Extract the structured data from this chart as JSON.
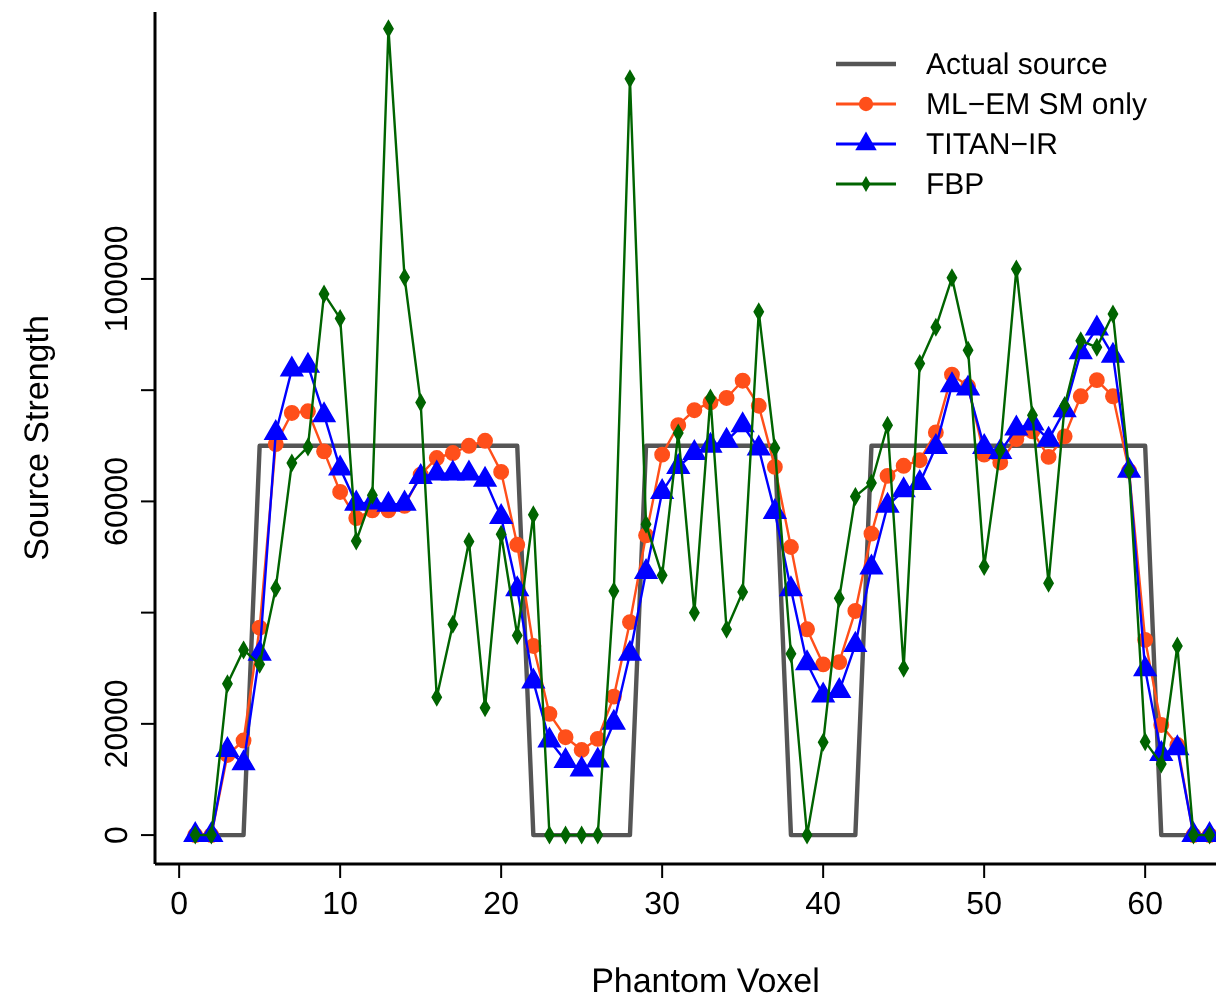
{
  "chart_data": {
    "type": "line",
    "xlabel": "Phantom Voxel",
    "ylabel": "Source Strength",
    "x": [
      1,
      2,
      3,
      4,
      5,
      6,
      7,
      8,
      9,
      10,
      11,
      12,
      13,
      14,
      15,
      16,
      17,
      18,
      19,
      20,
      21,
      22,
      23,
      24,
      25,
      26,
      27,
      28,
      29,
      30,
      31,
      32,
      33,
      34,
      35,
      36,
      37,
      38,
      39,
      40,
      41,
      42,
      43,
      44,
      45,
      46,
      47,
      48,
      49,
      50,
      51,
      52,
      53,
      54,
      55,
      56,
      57,
      58,
      59,
      60,
      61,
      62,
      63,
      64
    ],
    "xlim": [
      -1.5,
      64.4
    ],
    "xticks": [
      0,
      10,
      20,
      30,
      40,
      50,
      60
    ],
    "ylim": [
      -5200,
      148000
    ],
    "yticks": [
      0,
      20000,
      {
        "value": 40000,
        "label": null
      },
      60000,
      {
        "value": 80000,
        "label": null
      },
      100000
    ],
    "grid": false,
    "legend": "top right",
    "series": [
      {
        "name": "Actual source",
        "color": "#555555",
        "marker": "none",
        "values": [
          0,
          0,
          0,
          0,
          70000,
          70000,
          70000,
          70000,
          70000,
          70000,
          70000,
          70000,
          70000,
          70000,
          70000,
          70000,
          70000,
          70000,
          70000,
          70000,
          70000,
          0,
          0,
          0,
          0,
          0,
          0,
          0,
          70000,
          70000,
          70000,
          70000,
          70000,
          70000,
          70000,
          70000,
          70000,
          0,
          0,
          0,
          0,
          0,
          70000,
          70000,
          70000,
          70000,
          70000,
          70000,
          70000,
          70000,
          70000,
          70000,
          70000,
          70000,
          70000,
          70000,
          70000,
          70000,
          70000,
          70000,
          0,
          0,
          0,
          0
        ]
      },
      {
        "name": "ML−EM SM only",
        "color": "#ff4f1a",
        "marker": "circle",
        "values": [
          0,
          0,
          14400,
          17000,
          37300,
          70300,
          75900,
          76200,
          69000,
          61700,
          57000,
          58400,
          58400,
          59200,
          64800,
          67800,
          68700,
          70000,
          70900,
          65300,
          52200,
          34000,
          21800,
          17600,
          15300,
          17300,
          24900,
          38300,
          53900,
          68400,
          73700,
          76400,
          77800,
          78600,
          81700,
          77200,
          66200,
          51800,
          37000,
          30700,
          31100,
          40300,
          54200,
          64600,
          66400,
          67400,
          72400,
          82800,
          80700,
          68400,
          67000,
          71200,
          72600,
          68000,
          71700,
          78900,
          81800,
          78900,
          65500,
          35100,
          19800,
          16200,
          0,
          0
        ]
      },
      {
        "name": "TITAN−IR",
        "color": "#0000ff",
        "marker": "triangle",
        "values": [
          0,
          0,
          15300,
          12900,
          32600,
          72300,
          83700,
          84400,
          75500,
          65900,
          59600,
          59800,
          59400,
          59600,
          64400,
          65000,
          65000,
          65000,
          63900,
          57200,
          44200,
          27600,
          17000,
          13300,
          11800,
          13400,
          20200,
          32600,
          47300,
          61700,
          66200,
          68700,
          70000,
          70900,
          73700,
          69500,
          58100,
          44200,
          30900,
          25100,
          25900,
          34200,
          48100,
          59200,
          62000,
          63300,
          69800,
          80900,
          80300,
          69800,
          68900,
          73100,
          74000,
          71100,
          76400,
          86800,
          91100,
          86200,
          65500,
          29800,
          14600,
          15600,
          0,
          0
        ]
      },
      {
        "name": "FBP",
        "color": "#006400",
        "marker": "diamond",
        "values": [
          0,
          0,
          27200,
          33300,
          30700,
          44400,
          66900,
          69800,
          97300,
          92900,
          52900,
          61100,
          145000,
          100300,
          77800,
          24800,
          37900,
          52800,
          22900,
          54100,
          35900,
          57600,
          0,
          0,
          0,
          0,
          43900,
          136000,
          55900,
          46700,
          72300,
          40000,
          78600,
          37000,
          43700,
          94100,
          69600,
          32600,
          0,
          16700,
          42600,
          60900,
          63300,
          73700,
          30000,
          84800,
          91300,
          100200,
          87200,
          48300,
          69200,
          101800,
          75500,
          45300,
          77200,
          88900,
          87700,
          93700,
          65500,
          16800,
          12800,
          34000,
          0,
          0
        ]
      }
    ]
  }
}
